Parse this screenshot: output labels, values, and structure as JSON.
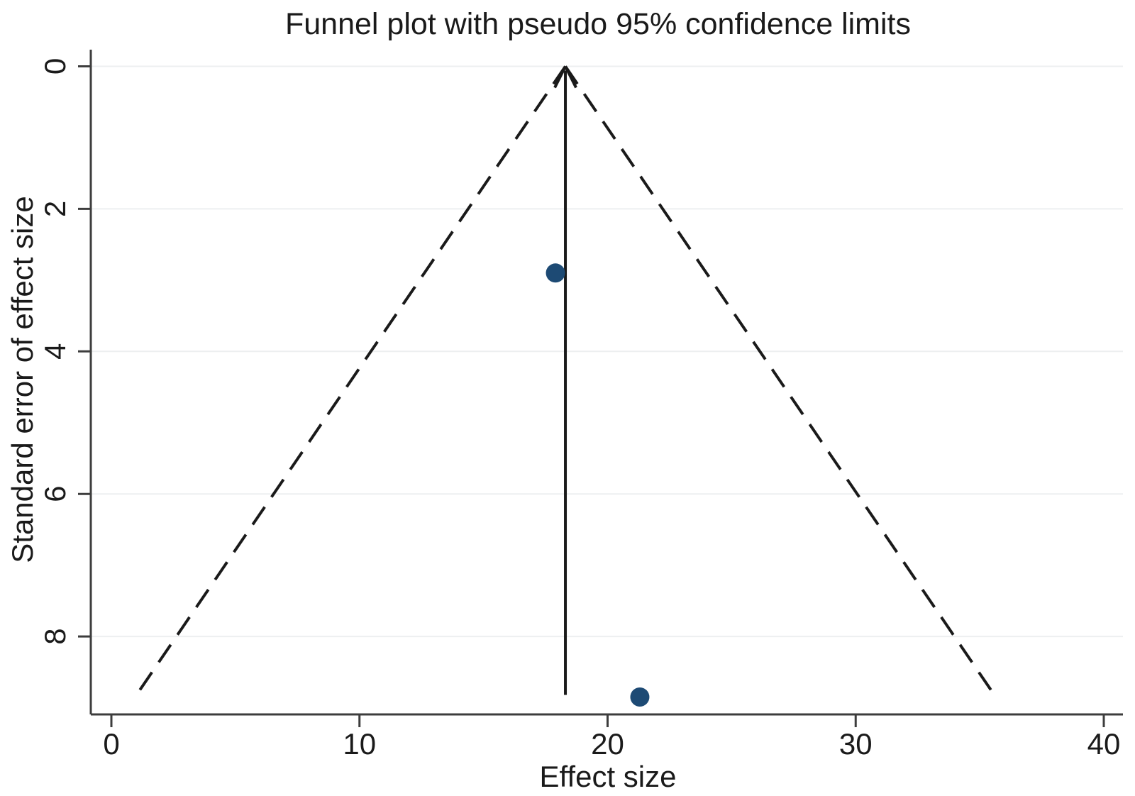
{
  "chart_data": {
    "type": "scatter",
    "title": "Funnel plot with pseudo 95% confidence limits",
    "xlabel": "Effect size",
    "ylabel": "Standard error of effect size",
    "x_ticks": [
      0,
      10,
      20,
      30,
      40
    ],
    "y_ticks": [
      0,
      2,
      4,
      6,
      8
    ],
    "xlim": [
      -0.8,
      40.8
    ],
    "ylim": [
      0,
      9.1
    ],
    "y_axis_inverted": true,
    "grid": "horizontal gridlines at each y tick",
    "legend": "none",
    "points": [
      {
        "effect_size": 17.9,
        "standard_error": 2.9
      },
      {
        "effect_size": 21.3,
        "standard_error": 8.85
      }
    ],
    "pooled_effect_line": {
      "x": 18.3,
      "from_se": 8.82,
      "to_se": 0,
      "style": "solid vertical line with upward arrowhead at SE = 0"
    },
    "pseudo_ci_limits": {
      "style": "dashed",
      "apex_x": 18.3,
      "apex_se": 0,
      "max_se": 8.82,
      "ci_multiplier": 1.96,
      "left_end_x": 1.0,
      "right_end_x": 35.6
    },
    "colors": {
      "point": "#1d4a74",
      "line": "#1a1a1a",
      "axis": "#3d3d3d",
      "grid": "#edeff0",
      "text": "#1a1a1a",
      "background": "#ffffff"
    }
  }
}
